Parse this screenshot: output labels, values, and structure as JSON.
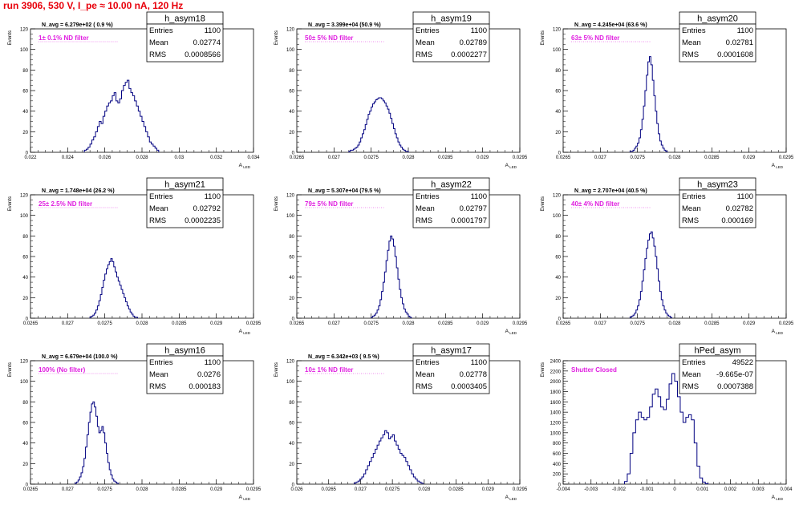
{
  "title": "run 3906,   530 V, I_pe ≈ 10.00 nA, 120 Hz",
  "colors": {
    "line": "#000080",
    "annotation": "#e020e0",
    "title": "#e8000b"
  },
  "chart_data": [
    {
      "type": "bar",
      "name": "h_asym18",
      "label": "1± 0.1% ND filter",
      "navg": "N_avg = 6.279e+02 ( 0.9 %)",
      "stats": {
        "entries": "1100",
        "mean": "0.02774",
        "rms": "0.0008566"
      },
      "xlim": [
        0.022,
        0.034
      ],
      "ylim": [
        0,
        120
      ],
      "xticks": [
        0.022,
        0.024,
        0.026,
        0.028,
        0.03,
        0.032,
        0.034
      ],
      "xtick_labels": [
        "0.022",
        "0.024",
        "0.026",
        "0.028",
        "0.03",
        "0.032",
        "0.034"
      ],
      "yticks": [
        0,
        20,
        40,
        60,
        80,
        100,
        120
      ],
      "ylabel": "Events",
      "xlabel": "A_LED",
      "bin_width": 0.0001,
      "bin_start": 0.0249,
      "values": [
        2,
        3,
        5,
        8,
        12,
        15,
        20,
        25,
        30,
        28,
        35,
        40,
        45,
        48,
        50,
        55,
        58,
        50,
        48,
        52,
        60,
        65,
        68,
        70,
        62,
        58,
        55,
        50,
        45,
        40,
        35,
        30,
        25,
        20,
        15,
        10,
        8,
        6,
        4,
        2
      ]
    },
    {
      "type": "bar",
      "name": "h_asym19",
      "label": "50± 5% ND filter",
      "navg": "N_avg = 3.399e+04 (50.9 %)",
      "stats": {
        "entries": "1100",
        "mean": "0.02789",
        "rms": "0.0002277"
      },
      "xlim": [
        0.0265,
        0.0295
      ],
      "ylim": [
        0,
        120
      ],
      "xticks": [
        0.0265,
        0.027,
        0.0275,
        0.028,
        0.0285,
        0.029,
        0.0295
      ],
      "xtick_labels": [
        "0.0265",
        "0.027",
        "0.0275",
        "0.028",
        "0.0285",
        "0.029",
        "0.0295"
      ],
      "yticks": [
        0,
        20,
        40,
        60,
        80,
        100,
        120
      ],
      "ylabel": "Events",
      "xlabel": "A_LED",
      "bin_width": 2e-05,
      "bin_start": 0.0272,
      "values": [
        1,
        2,
        2,
        3,
        4,
        5,
        7,
        10,
        14,
        18,
        22,
        27,
        32,
        37,
        40,
        44,
        47,
        49,
        51,
        52,
        53,
        53,
        52,
        50,
        48,
        45,
        42,
        38,
        33,
        28,
        23,
        18,
        14,
        10,
        7,
        5,
        3,
        2,
        1,
        1
      ]
    },
    {
      "type": "bar",
      "name": "h_asym20",
      "label": "63± 5% ND filter",
      "navg": "N_avg = 4.245e+04 (63.6 %)",
      "stats": {
        "entries": "1100",
        "mean": "0.02781",
        "rms": "0.0001608"
      },
      "xlim": [
        0.0265,
        0.0295
      ],
      "ylim": [
        0,
        120
      ],
      "xticks": [
        0.0265,
        0.027,
        0.0275,
        0.028,
        0.0285,
        0.029,
        0.0295
      ],
      "xtick_labels": [
        "0.0265",
        "0.027",
        "0.0275",
        "0.028",
        "0.0285",
        "0.029",
        "0.0295"
      ],
      "yticks": [
        0,
        20,
        40,
        60,
        80,
        100,
        120
      ],
      "ylabel": "Events",
      "xlabel": "A_LED",
      "bin_width": 2e-05,
      "bin_start": 0.0274,
      "values": [
        1,
        1,
        2,
        4,
        6,
        9,
        14,
        22,
        32,
        45,
        60,
        75,
        88,
        93,
        85,
        70,
        55,
        40,
        28,
        18,
        11,
        7,
        4,
        2,
        1
      ]
    },
    {
      "type": "bar",
      "name": "h_asym21",
      "label": "25± 2.5% ND filter",
      "navg": "N_avg = 1.748e+04 (26.2 %)",
      "stats": {
        "entries": "1100",
        "mean": "0.02792",
        "rms": "0.0002235"
      },
      "xlim": [
        0.0265,
        0.0295
      ],
      "ylim": [
        0,
        120
      ],
      "xticks": [
        0.0265,
        0.027,
        0.0275,
        0.028,
        0.0285,
        0.029,
        0.0295
      ],
      "xtick_labels": [
        "0.0265",
        "0.027",
        "0.0275",
        "0.028",
        "0.0285",
        "0.029",
        "0.0295"
      ],
      "yticks": [
        0,
        20,
        40,
        60,
        80,
        100,
        120
      ],
      "ylabel": "Events",
      "xlabel": "A_LED",
      "bin_width": 2e-05,
      "bin_start": 0.0273,
      "values": [
        1,
        2,
        3,
        5,
        8,
        12,
        17,
        23,
        30,
        37,
        43,
        48,
        52,
        55,
        58,
        55,
        50,
        45,
        40,
        36,
        32,
        28,
        24,
        20,
        16,
        12,
        9,
        6,
        4,
        2,
        1,
        1
      ]
    },
    {
      "type": "bar",
      "name": "h_asym22",
      "label": "79± 5% ND filter",
      "navg": "N_avg = 5.307e+04 (79.5 %)",
      "stats": {
        "entries": "1100",
        "mean": "0.02797",
        "rms": "0.0001797"
      },
      "xlim": [
        0.0265,
        0.0295
      ],
      "ylim": [
        0,
        120
      ],
      "xticks": [
        0.0265,
        0.027,
        0.0275,
        0.028,
        0.0285,
        0.029,
        0.0295
      ],
      "xtick_labels": [
        "0.0265",
        "0.027",
        "0.0275",
        "0.028",
        "0.0285",
        "0.029",
        "0.0295"
      ],
      "yticks": [
        0,
        20,
        40,
        60,
        80,
        100,
        120
      ],
      "ylabel": "Events",
      "xlabel": "A_LED",
      "bin_width": 2e-05,
      "bin_start": 0.0275,
      "values": [
        1,
        2,
        3,
        5,
        8,
        12,
        18,
        26,
        35,
        45,
        56,
        66,
        75,
        80,
        77,
        70,
        60,
        49,
        38,
        28,
        20,
        14,
        9,
        6,
        4,
        2,
        1
      ]
    },
    {
      "type": "bar",
      "name": "h_asym23",
      "label": "40± 4% ND filter",
      "navg": "N_avg = 2.707e+04 (40.5 %)",
      "stats": {
        "entries": "1100",
        "mean": "0.02782",
        "rms": "0.000169"
      },
      "xlim": [
        0.0265,
        0.0295
      ],
      "ylim": [
        0,
        120
      ],
      "xticks": [
        0.0265,
        0.027,
        0.0275,
        0.028,
        0.0285,
        0.029,
        0.0295
      ],
      "xtick_labels": [
        "0.0265",
        "0.027",
        "0.0275",
        "0.028",
        "0.0285",
        "0.029",
        "0.0295"
      ],
      "yticks": [
        0,
        20,
        40,
        60,
        80,
        100,
        120
      ],
      "ylabel": "Events",
      "xlabel": "A_LED",
      "bin_width": 2e-05,
      "bin_start": 0.0274,
      "values": [
        1,
        2,
        3,
        5,
        8,
        12,
        18,
        26,
        36,
        47,
        58,
        68,
        76,
        82,
        84,
        78,
        70,
        60,
        48,
        36,
        26,
        18,
        12,
        8,
        5,
        3,
        2,
        1
      ]
    },
    {
      "type": "bar",
      "name": "h_asym16",
      "label": "100% (No filter)",
      "navg": "N_avg = 6.679e+04 (100.0 %)",
      "stats": {
        "entries": "1100",
        "mean": "0.0276",
        "rms": "0.000183"
      },
      "xlim": [
        0.0265,
        0.0295
      ],
      "ylim": [
        0,
        120
      ],
      "xticks": [
        0.0265,
        0.027,
        0.0275,
        0.028,
        0.0285,
        0.029,
        0.0295
      ],
      "xtick_labels": [
        "0.0265",
        "0.027",
        "0.0275",
        "0.028",
        "0.0285",
        "0.029",
        "0.0295"
      ],
      "yticks": [
        0,
        20,
        40,
        60,
        80,
        100,
        120
      ],
      "ylabel": "Events",
      "xlabel": "A_LED",
      "bin_width": 2e-05,
      "bin_start": 0.0271,
      "values": [
        1,
        2,
        4,
        7,
        11,
        17,
        25,
        36,
        48,
        60,
        70,
        78,
        80,
        75,
        66,
        56,
        50,
        52,
        56,
        50,
        40,
        30,
        21,
        14,
        9,
        5,
        3,
        2,
        1
      ]
    },
    {
      "type": "bar",
      "name": "h_asym17",
      "label": "10± 1% ND filter",
      "navg": "N_avg = 6.342e+03 ( 9.5 %)",
      "stats": {
        "entries": "1100",
        "mean": "0.02778",
        "rms": "0.0003405"
      },
      "xlim": [
        0.026,
        0.0295
      ],
      "ylim": [
        0,
        120
      ],
      "xticks": [
        0.026,
        0.0265,
        0.027,
        0.0275,
        0.028,
        0.0285,
        0.029,
        0.0295
      ],
      "xtick_labels": [
        "0.026",
        "0.0265",
        "0.027",
        "0.0275",
        "0.028",
        "0.0285",
        "0.029",
        "0.0295"
      ],
      "yticks": [
        0,
        20,
        40,
        60,
        80,
        100,
        120
      ],
      "ylabel": "Events",
      "xlabel": "A_LED",
      "bin_width": 3e-05,
      "bin_start": 0.0269,
      "values": [
        1,
        2,
        3,
        5,
        7,
        10,
        14,
        18,
        22,
        26,
        30,
        34,
        38,
        42,
        45,
        48,
        52,
        50,
        44,
        46,
        48,
        42,
        38,
        34,
        30,
        28,
        26,
        22,
        18,
        14,
        10,
        7,
        5,
        3,
        2,
        1
      ]
    },
    {
      "type": "bar",
      "name": "hPed_asym",
      "label": "Shutter Closed",
      "navg": "",
      "stats": {
        "entries": "49522",
        "mean": "-9.665e-07",
        "rms": "0.0007388"
      },
      "xlim": [
        -0.004,
        0.004
      ],
      "ylim": [
        0,
        2400
      ],
      "xticks": [
        -0.004,
        -0.003,
        -0.002,
        -0.001,
        0,
        0.001,
        0.002,
        0.003,
        0.004
      ],
      "xtick_labels": [
        "-0.004",
        "-0.003",
        "-0.002",
        "-0.001",
        "0",
        "0.001",
        "0.002",
        "0.003",
        "0.004"
      ],
      "yticks": [
        0,
        200,
        400,
        600,
        800,
        1000,
        1200,
        1400,
        1600,
        1800,
        2000,
        2200,
        2400
      ],
      "ylabel": "Events",
      "xlabel": "A_LED",
      "bin_width": 0.0001,
      "bin_start": -0.0018,
      "values": [
        50,
        200,
        600,
        1000,
        1250,
        1400,
        1300,
        1250,
        1300,
        1500,
        1750,
        1850,
        1700,
        1500,
        1450,
        1650,
        1950,
        2150,
        2000,
        1700,
        1400,
        1200,
        1300,
        1350,
        1250,
        800,
        350,
        120,
        40,
        10
      ]
    }
  ]
}
